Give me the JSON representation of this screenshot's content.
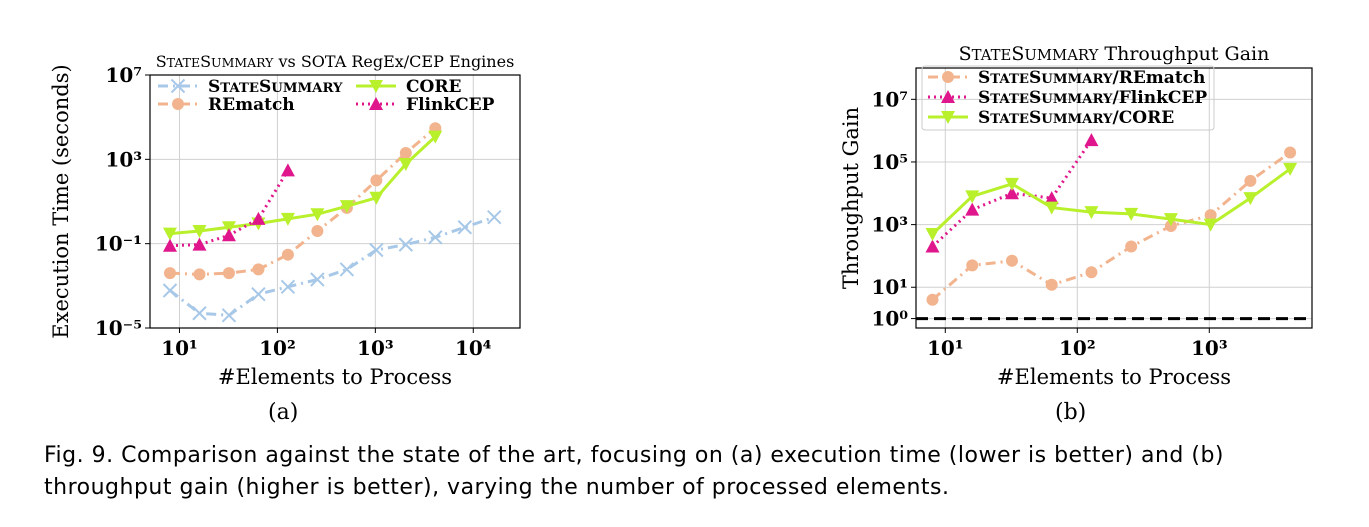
{
  "figure": {
    "caption": "Fig. 9. Comparison against the state of the art, focusing on (a) execution time (lower is better) and (b) throughput gain (higher is better), varying the number of processed elements.",
    "sub_labels": [
      "(a)",
      "(b)"
    ]
  },
  "chart_data": [
    {
      "type": "line",
      "title": "StateSummary vs SOTA RegEx/CEP Engines",
      "xlabel": "#Elements to Process",
      "ylabel": "Execution Time (seconds)",
      "xscale": "log",
      "yscale": "log",
      "xlim": [
        5,
        30000
      ],
      "ylim": [
        1e-05,
        10000000.0
      ],
      "xticks": [
        10,
        100,
        1000,
        10000
      ],
      "xtick_labels": [
        "10¹",
        "10²",
        "10³",
        "10⁴"
      ],
      "yticks": [
        1e-05,
        0.1,
        1000,
        10000000.0
      ],
      "ytick_labels": [
        "10⁻⁵",
        "10⁻¹",
        "10³",
        "10⁷"
      ],
      "grid": true,
      "legend_position": "top",
      "series": [
        {
          "name": "StateSummary",
          "color": "#a8c8e8",
          "dash": "10,5,2,5",
          "marker": "x",
          "x": [
            8,
            16,
            32,
            64,
            128,
            256,
            512,
            1024,
            2048,
            4096,
            8192,
            16384
          ],
          "y": [
            0.0006,
            5e-05,
            4e-05,
            0.0004,
            0.0009,
            0.002,
            0.006,
            0.05,
            0.09,
            0.2,
            0.6,
            1.8
          ]
        },
        {
          "name": "REmatch",
          "color": "#f2b48e",
          "dash": "10,5,2,5",
          "marker": "o",
          "x": [
            8,
            16,
            32,
            64,
            128,
            256,
            512,
            1024,
            2048,
            4096
          ],
          "y": [
            0.004,
            0.0035,
            0.004,
            0.006,
            0.03,
            0.4,
            5,
            100,
            2000,
            30000
          ]
        },
        {
          "name": "CORE",
          "color": "#b8f02c",
          "dash": "",
          "marker": "v",
          "x": [
            8,
            16,
            32,
            64,
            128,
            256,
            512,
            1024,
            2048,
            4096
          ],
          "y": [
            0.3,
            0.4,
            0.6,
            0.9,
            1.5,
            2.5,
            6,
            15,
            600,
            12000
          ]
        },
        {
          "name": "FlinkCEP",
          "color": "#e0168c",
          "dash": "2,4",
          "marker": "^",
          "x": [
            8,
            16,
            32,
            64,
            128
          ],
          "y": [
            0.08,
            0.09,
            0.25,
            1.5,
            300
          ]
        }
      ]
    },
    {
      "type": "line",
      "title": "StateSummary Throughput Gain",
      "xlabel": "#Elements to Process",
      "ylabel": "Throughput Gain",
      "xscale": "log",
      "yscale": "log",
      "xlim": [
        6,
        6000
      ],
      "ylim": [
        0.5,
        100000000.0
      ],
      "xticks": [
        10,
        100,
        1000
      ],
      "xtick_labels": [
        "10¹",
        "10²",
        "10³"
      ],
      "yticks": [
        1,
        10,
        1000,
        100000,
        10000000
      ],
      "ytick_labels": [
        "10⁰",
        "10¹",
        "10³",
        "10⁵",
        "10⁷"
      ],
      "grid": true,
      "legend_position": "top-left",
      "baseline": 1,
      "series": [
        {
          "name": "StateSummary/REmatch",
          "color": "#f2b48e",
          "dash": "10,5,2,5",
          "marker": "o",
          "x": [
            8,
            16,
            32,
            64,
            128,
            256,
            512,
            1024,
            2048,
            4096
          ],
          "y": [
            4,
            50,
            70,
            12,
            30,
            200,
            900,
            2000,
            25000,
            200000
          ]
        },
        {
          "name": "StateSummary/FlinkCEP",
          "color": "#e0168c",
          "dash": "2,4",
          "marker": "^",
          "x": [
            8,
            16,
            32,
            64,
            128
          ],
          "y": [
            200,
            3000,
            10000,
            7000,
            500000
          ]
        },
        {
          "name": "StateSummary/CORE",
          "color": "#b8f02c",
          "dash": "",
          "marker": "v",
          "x": [
            8,
            16,
            32,
            64,
            128,
            256,
            512,
            1024,
            2048,
            4096
          ],
          "y": [
            500,
            8000,
            20000,
            3500,
            2500,
            2200,
            1500,
            1000,
            7000,
            60000
          ]
        }
      ]
    }
  ]
}
